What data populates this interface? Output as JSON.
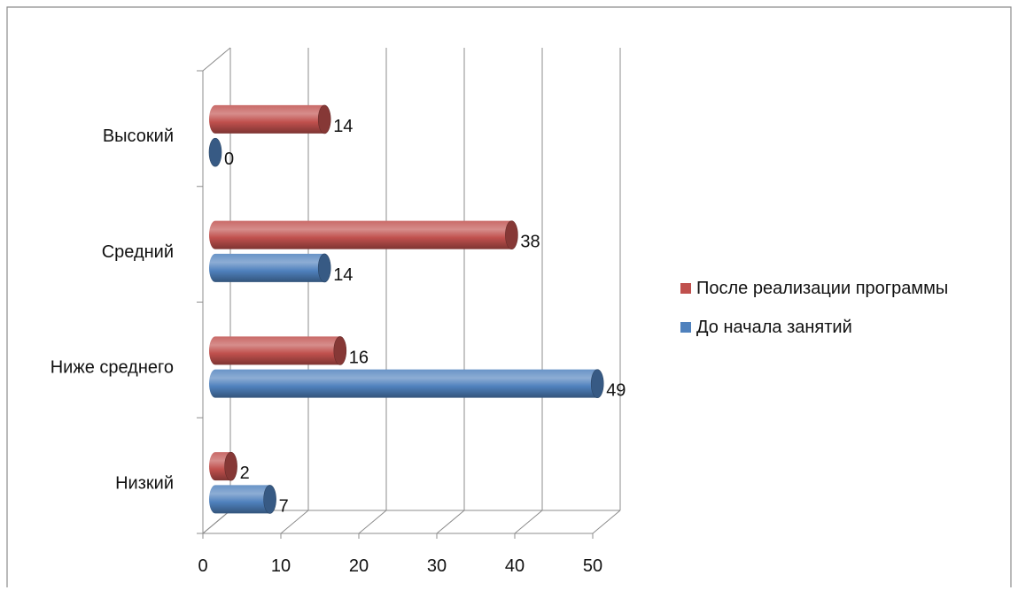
{
  "chart_data": {
    "type": "bar",
    "orientation": "horizontal",
    "style": "3d-cylinder",
    "categories": [
      "Низкий",
      "Ниже среднего",
      "Средний",
      "Высокий"
    ],
    "series": [
      {
        "name": "До начала занятий",
        "color": "#4F81BD",
        "values": [
          7,
          49,
          14,
          0
        ]
      },
      {
        "name": "После реализации программы",
        "color": "#C0504D",
        "values": [
          2,
          16,
          38,
          14
        ]
      }
    ],
    "xlim": [
      0,
      50
    ],
    "x_ticks": [
      "0",
      "10",
      "20",
      "30",
      "40",
      "50"
    ],
    "grid": true,
    "legend_position": "right",
    "legend_order": [
      "После реализации программы",
      "До начала занятий"
    ]
  }
}
